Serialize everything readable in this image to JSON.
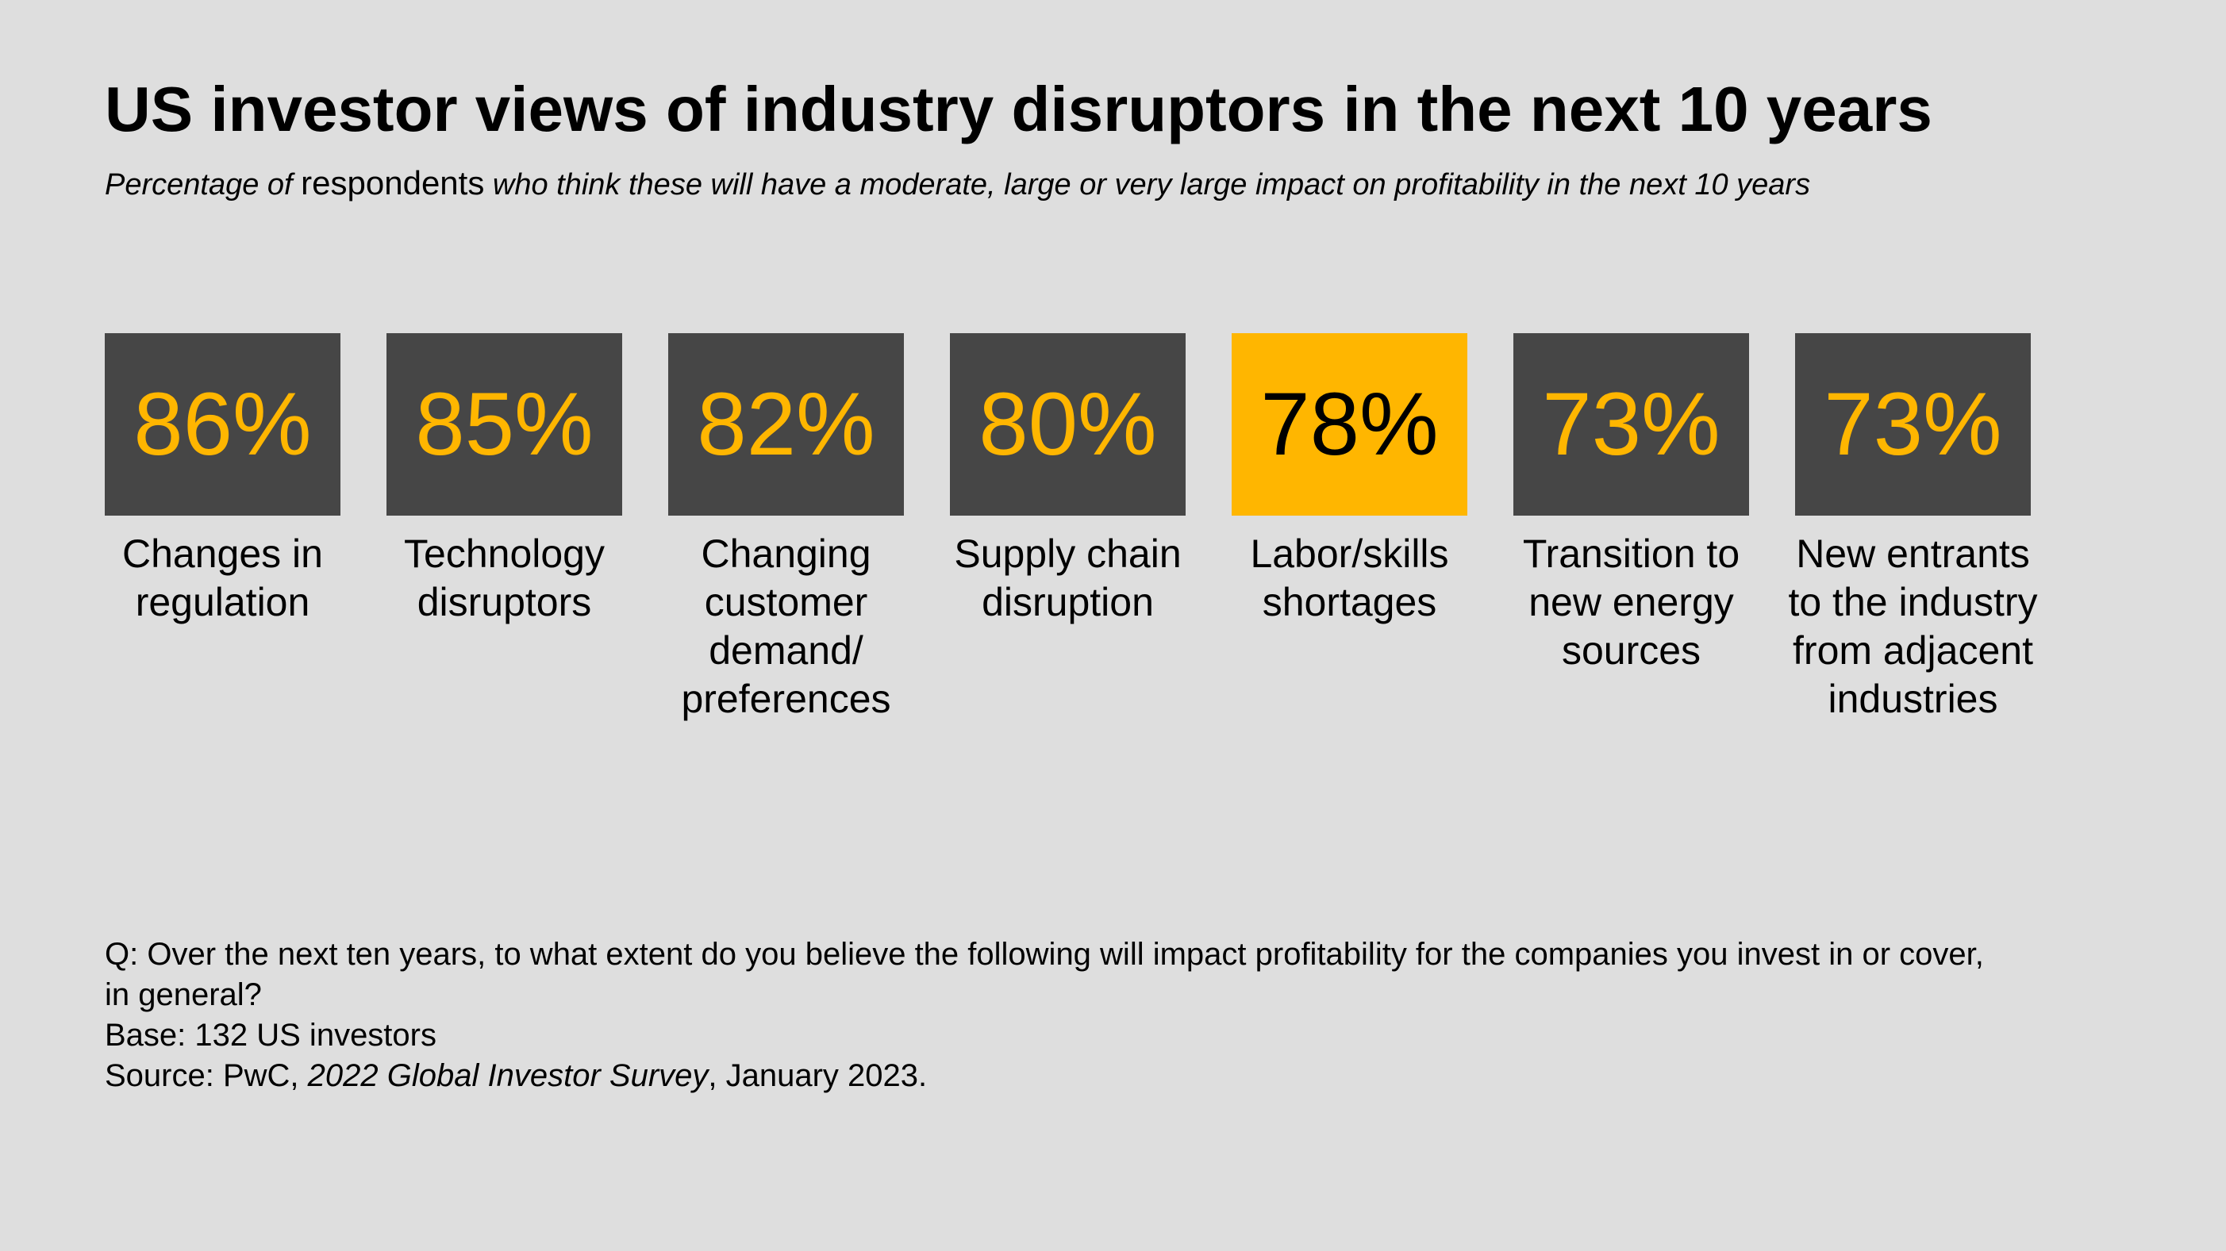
{
  "title": "US investor views of industry disruptors in the next 10 years",
  "subtitle": {
    "prefix": "Percentage of ",
    "emphasis": "respondents",
    "suffix": " who think these will have a moderate, large or very large impact on profitability in the next 10 years"
  },
  "colors": {
    "background": "#dedede",
    "tile": "#464646",
    "accent": "#ffb600",
    "highlight_text": "#000000"
  },
  "chart_data": {
    "type": "table",
    "categories": [
      "Changes in regulation",
      "Technology disruptors",
      "Changing customer demand/ preferences",
      "Supply chain disruption",
      "Labor/skills shortages",
      "Transition to new energy sources",
      "New entrants to the industry from adjacent industries"
    ],
    "values": [
      86,
      85,
      82,
      80,
      78,
      73,
      73
    ],
    "highlighted_index": 4,
    "items": [
      {
        "value_label": "86%",
        "label_lines": [
          "Changes in",
          "regulation"
        ],
        "highlight": false
      },
      {
        "value_label": "85%",
        "label_lines": [
          "Technology",
          "disruptors"
        ],
        "highlight": false
      },
      {
        "value_label": "82%",
        "label_lines": [
          "Changing",
          "customer",
          "demand/",
          "preferences"
        ],
        "highlight": false
      },
      {
        "value_label": "80%",
        "label_lines": [
          "Supply chain",
          "disruption"
        ],
        "highlight": false
      },
      {
        "value_label": "78%",
        "label_lines": [
          "Labor/skills",
          "shortages"
        ],
        "highlight": true
      },
      {
        "value_label": "73%",
        "label_lines": [
          "Transition to",
          "new energy",
          "sources"
        ],
        "highlight": false
      },
      {
        "value_label": "73%",
        "label_lines": [
          "New entrants",
          "to the industry",
          "from adjacent",
          "industries"
        ],
        "highlight": false
      }
    ]
  },
  "footnotes": {
    "question_line1": "Q: Over the next ten years, to what extent do you believe the following will impact profitability for the companies you invest in or cover,",
    "question_line2": "in general?",
    "base": "Base: 132 US investors",
    "source_prefix": "Source: PwC, ",
    "source_title": "2022 Global Investor Survey",
    "source_suffix": ", January 2023."
  }
}
